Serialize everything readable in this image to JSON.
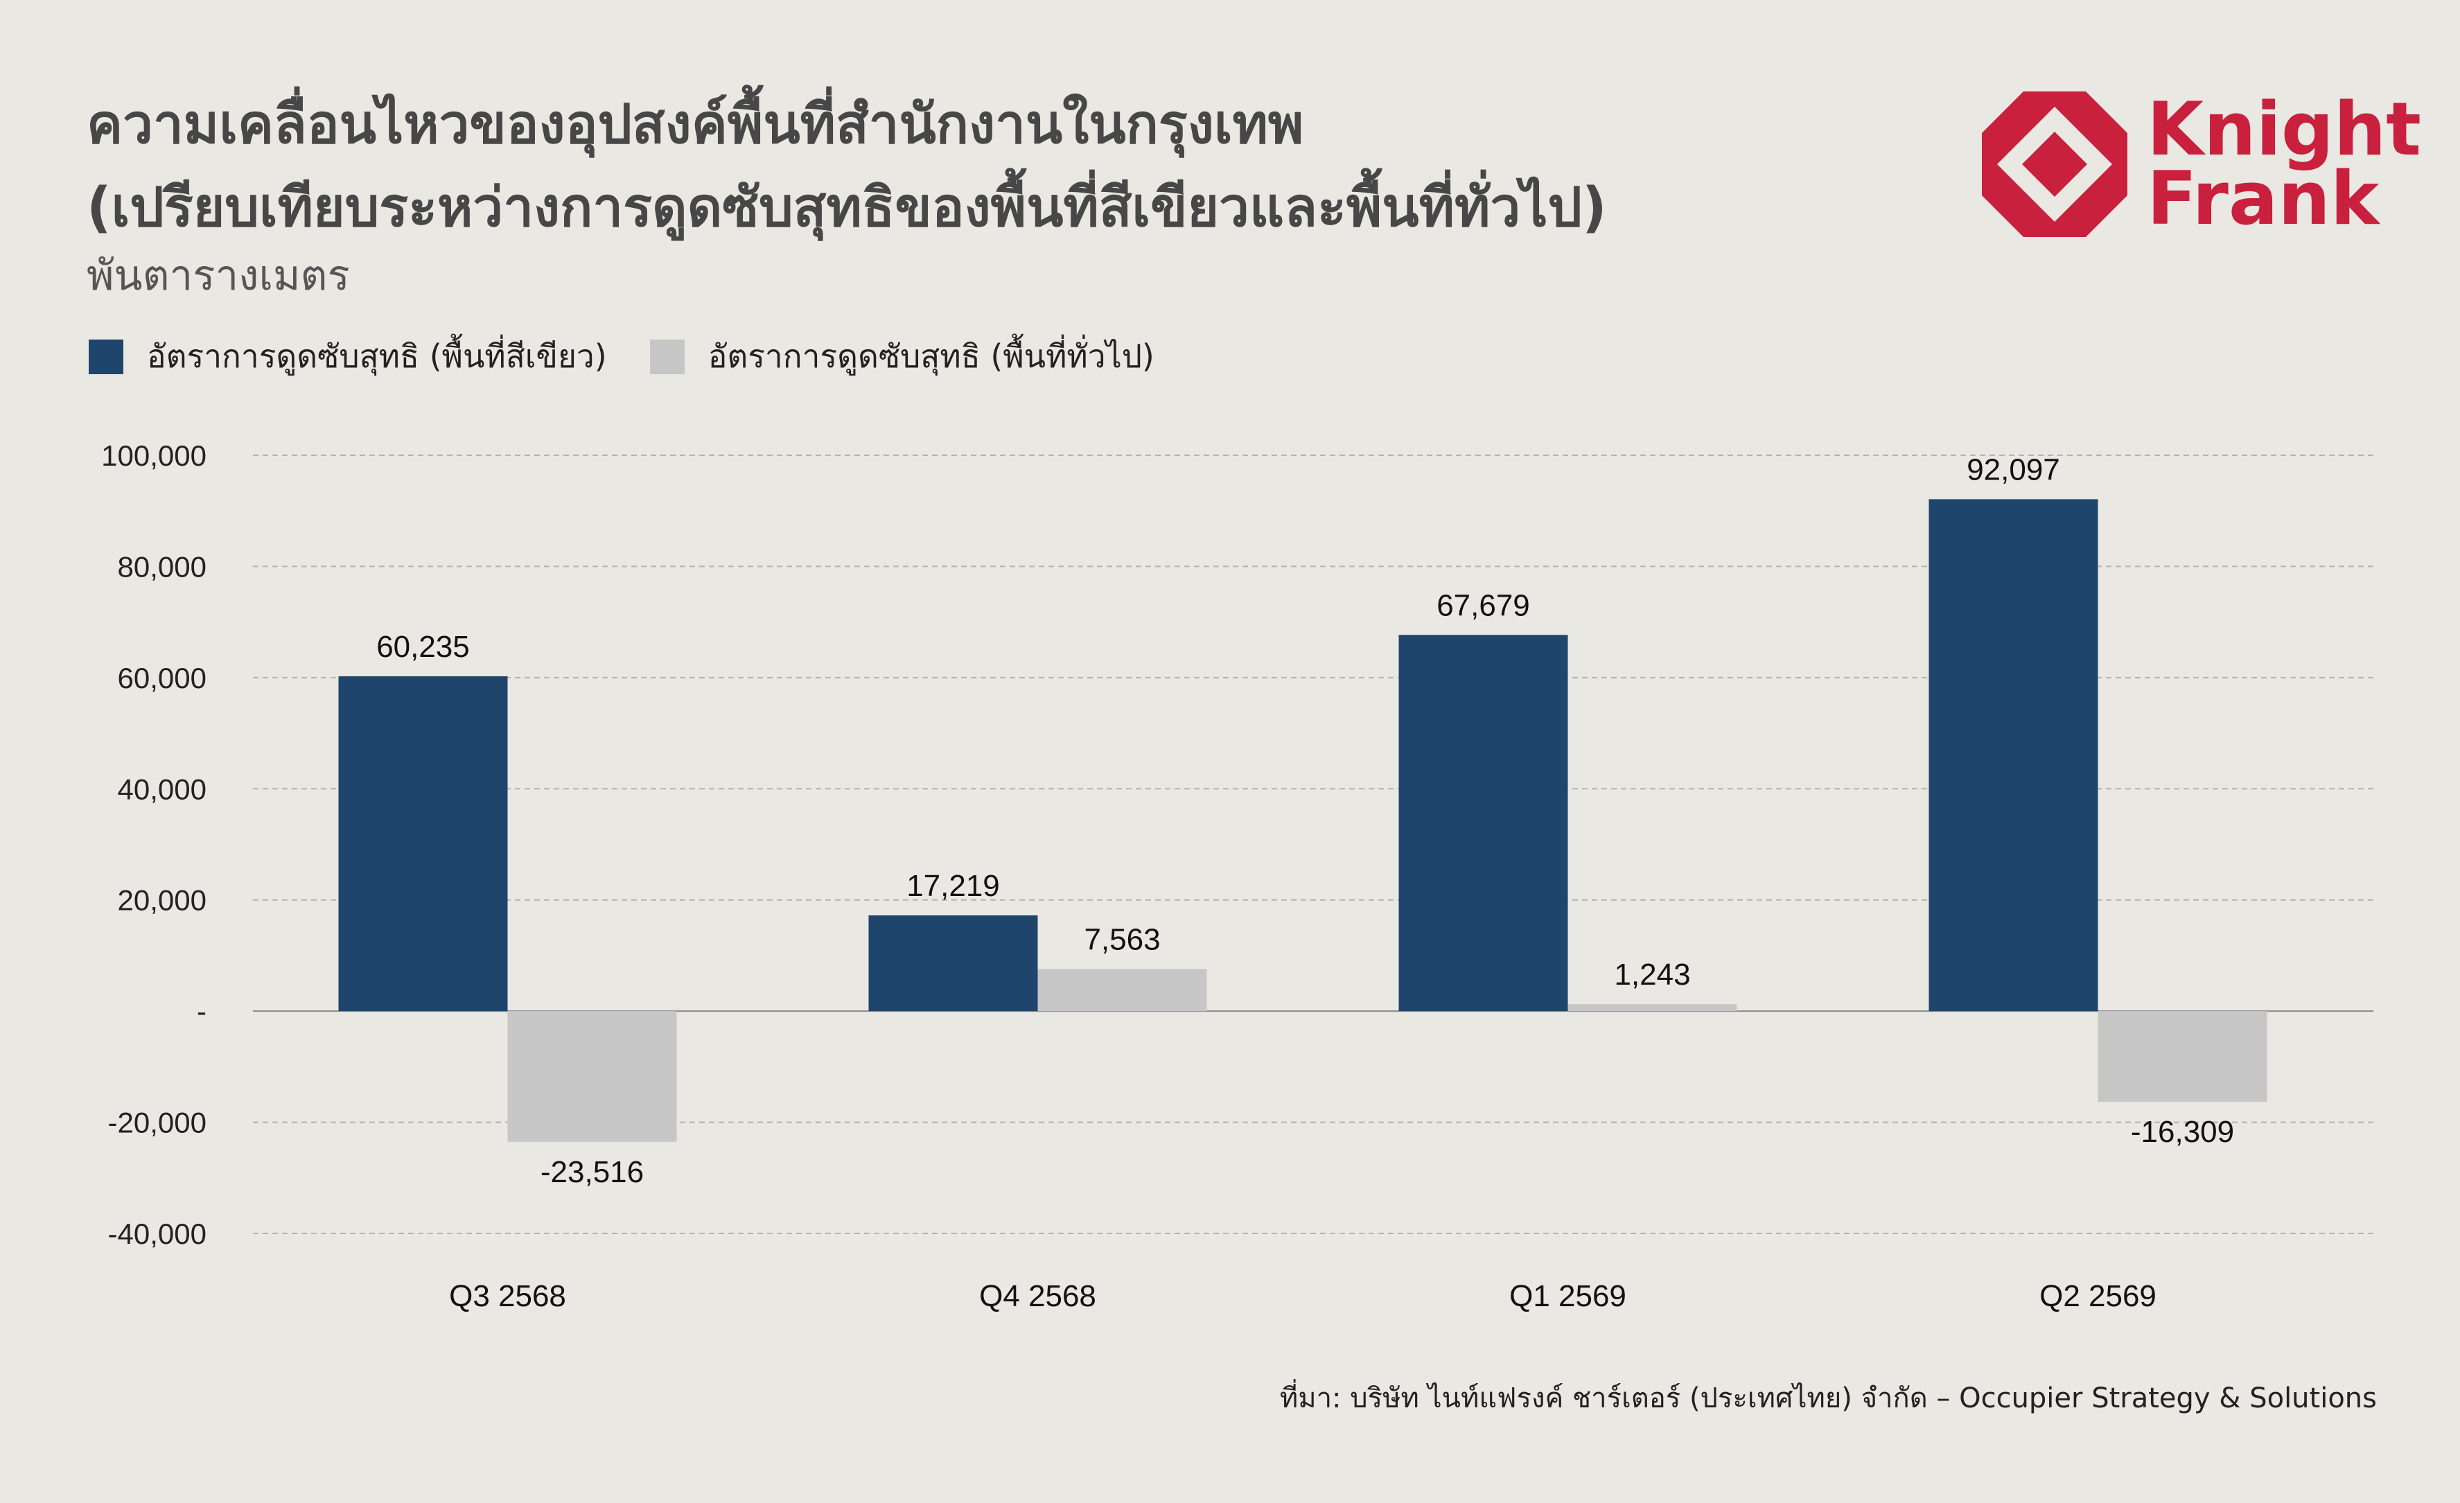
{
  "header": {
    "title_line1": "ความเคลื่อนไหวของอุปสงค์พื้นที่สำนักงานในกรุงเทพ",
    "title_line2": "(เปรียบเทียบระหว่างการดูดซับสุทธิของพื้นที่สีเขียวและพื้นที่ทั่วไป)",
    "unit": "พันตารางเมตร"
  },
  "logo": {
    "line1": "Knight",
    "line2": "Frank",
    "color": "#c8203d"
  },
  "source": "ที่มา: บริษัท ไนท์แฟรงค์ ชาร์เตอร์ (ประเทศไทย) จำกัด – Occupier Strategy & Solutions",
  "chart_data": {
    "type": "bar",
    "categories": [
      "Q3 2568",
      "Q4 2568",
      "Q1 2569",
      "Q2 2569"
    ],
    "series": [
      {
        "name": "อัตราการดูดซับสุทธิ (พื้นที่สีเขียว)",
        "color": "#1f456c",
        "values": [
          60235,
          17219,
          67679,
          92097
        ],
        "labels": [
          "60,235",
          "17,219",
          "67,679",
          "92,097"
        ]
      },
      {
        "name": "อัตราการดูดซับสุทธิ (พื้นที่ทั่วไป)",
        "color": "#c6c6c6",
        "values": [
          -23516,
          7563,
          1243,
          -16309
        ],
        "labels": [
          "-23,516",
          "7,563",
          "1,243",
          "-16,309"
        ]
      }
    ],
    "ylim": [
      -40000,
      100000
    ],
    "yticks": [
      100000,
      80000,
      60000,
      40000,
      20000,
      0,
      -20000,
      -40000
    ],
    "ytick_labels": [
      "100,000",
      "80,000",
      "60,000",
      "40,000",
      "20,000",
      "-",
      "-20,000",
      "-40,000"
    ],
    "grid": true,
    "legend_position": "top-left"
  }
}
